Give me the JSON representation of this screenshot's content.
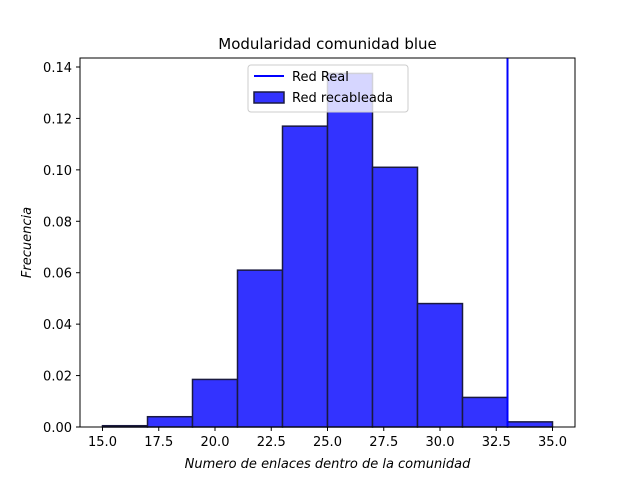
{
  "chart_data": {
    "type": "bar",
    "title": "Modularidad  comunidad blue",
    "xlabel": "Numero de enlaces dentro de la comunidad",
    "ylabel": "Frecuencia",
    "xlim": [
      14.0,
      36.0
    ],
    "ylim": [
      0.0,
      0.1435
    ],
    "xticks": [
      "15.0",
      "17.5",
      "20.0",
      "22.5",
      "25.0",
      "27.5",
      "30.0",
      "32.5",
      "35.0"
    ],
    "yticks": [
      "0.00",
      "0.02",
      "0.04",
      "0.06",
      "0.08",
      "0.10",
      "0.12",
      "0.14"
    ],
    "bin_width": 2,
    "bins": [
      {
        "x0": 15,
        "x1": 17,
        "value": 0.0005
      },
      {
        "x0": 17,
        "x1": 19,
        "value": 0.004
      },
      {
        "x0": 19,
        "x1": 21,
        "value": 0.0185
      },
      {
        "x0": 21,
        "x1": 23,
        "value": 0.061
      },
      {
        "x0": 23,
        "x1": 25,
        "value": 0.117
      },
      {
        "x0": 25,
        "x1": 27,
        "value": 0.1375
      },
      {
        "x0": 27,
        "x1": 29,
        "value": 0.101
      },
      {
        "x0": 29,
        "x1": 31,
        "value": 0.048
      },
      {
        "x0": 31,
        "x1": 33,
        "value": 0.0115
      },
      {
        "x0": 33,
        "x1": 35,
        "value": 0.002
      }
    ],
    "reference_line": {
      "name": "Red Real",
      "x": 33,
      "color": "#0000ff"
    },
    "histogram_series": {
      "name": "Red recableada",
      "fill": "#3333ff",
      "edge": "#1a1a40"
    },
    "legend": {
      "placement": "top-center",
      "entries": [
        "Red Real",
        "Red recableada"
      ]
    },
    "grid": false
  }
}
